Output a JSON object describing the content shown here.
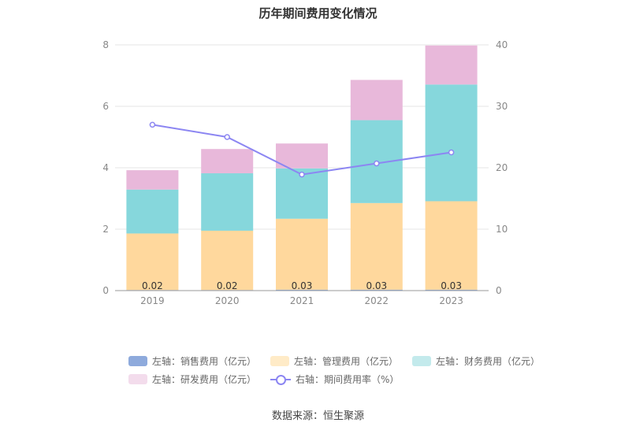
{
  "title": "历年期间费用变化情况",
  "source": "数据来源：恒生聚源",
  "chart_data": {
    "type": "bar",
    "categories": [
      "2019",
      "2020",
      "2021",
      "2022",
      "2023"
    ],
    "stacked": true,
    "series": [
      {
        "name": "左轴：销售费用（亿元）",
        "axis": "left",
        "color": "#8eaadc",
        "values": [
          0.02,
          0.02,
          0.03,
          0.03,
          0.03
        ]
      },
      {
        "name": "左轴：管理费用（亿元）",
        "axis": "left",
        "color": "#ffd89d",
        "values": [
          1.84,
          1.93,
          2.31,
          2.82,
          2.88
        ]
      },
      {
        "name": "左轴：财务费用（亿元）",
        "axis": "left",
        "color": "#86d7dc",
        "values": [
          1.43,
          1.87,
          1.64,
          2.7,
          3.8
        ]
      },
      {
        "name": "左轴：研发费用（亿元）",
        "axis": "left",
        "color": "#e8b8da",
        "values": [
          0.63,
          0.79,
          0.81,
          1.31,
          1.27
        ]
      }
    ],
    "line_series": {
      "name": "右轴：期间费用率（%）",
      "axis": "right",
      "color": "#8c86f2",
      "values": [
        27.0,
        25.0,
        18.9,
        20.7,
        22.5
      ]
    },
    "bar_labels": [
      "0.02",
      "0.02",
      "0.03",
      "0.03",
      "0.03"
    ],
    "left_axis": {
      "ylim": [
        0,
        8
      ],
      "ticks": [
        "0",
        "2",
        "4",
        "6",
        "8"
      ]
    },
    "right_axis": {
      "ylim": [
        0,
        40
      ],
      "ticks": [
        "0",
        "10",
        "20",
        "30",
        "40"
      ]
    },
    "grid": true,
    "legend_position": "bottom"
  }
}
